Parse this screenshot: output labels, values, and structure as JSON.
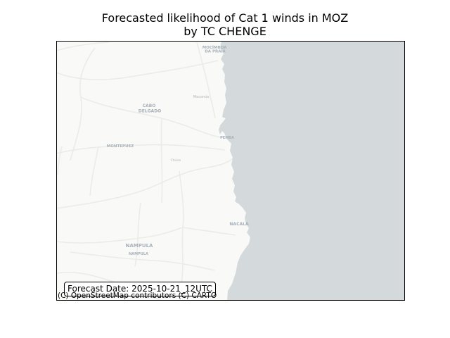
{
  "title": {
    "line1": "Forecasted likelihood of Cat 1 winds in MOZ",
    "line2": "by TC CHENGE"
  },
  "map": {
    "basemap": "CARTO Positron",
    "land_color": "#f9f9f8",
    "ocean_color": "#d4dadc",
    "road_color": "#ebebe8",
    "place_labels": [
      {
        "text": "MOCÍMBOA\nDA PRAIA"
      },
      {
        "text": "CABO\nDELGADO"
      },
      {
        "text": "Macomia"
      },
      {
        "text": "MONTEPUEZ"
      },
      {
        "text": "Chiúre"
      },
      {
        "text": "PEMBA"
      },
      {
        "text": "NACALA"
      },
      {
        "text": "NAMPULA"
      },
      {
        "text": "NAMPULA"
      }
    ]
  },
  "forecast_date": "Forecast Date: 2025-10-21_12UTC",
  "attribution": "(C) OpenStreetMap contributors (C) CARTO"
}
